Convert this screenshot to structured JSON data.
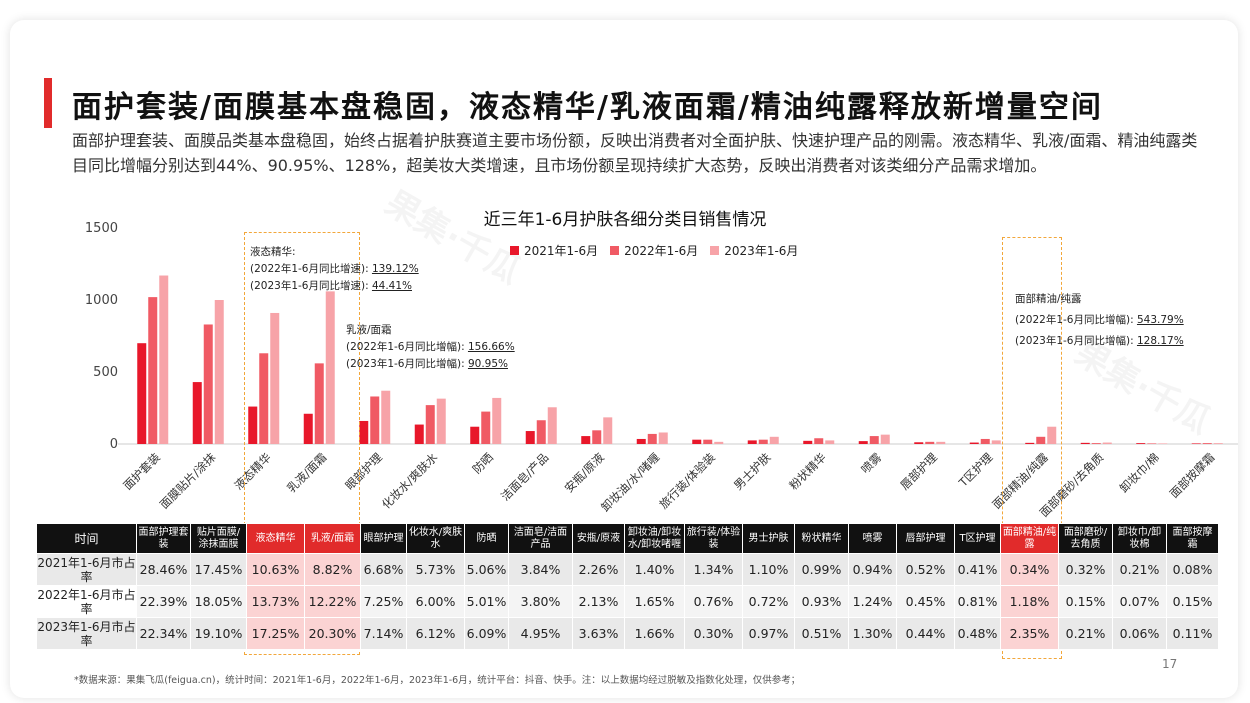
{
  "title": "面护套装/面膜基本盘稳固，液态精华/乳液面霜/精油纯露释放新增量空间",
  "description": "面部护理套装、面膜品类基本盘稳固，始终占据着护肤赛道主要市场份额，反映出消费者对全面护肤、快速护理产品的刚需。液态精华、乳液/面霜、精油纯露类目同比增幅分别达到44%、90.95%、128%，超美妆大类增速，且市场份额呈现持续扩大态势，反映出消费者对该类细分产品需求增加。",
  "watermark": "果集·千瓜",
  "colors": {
    "s2021": "#e8172a",
    "s2022": "#f05a64",
    "s2023": "#f7a3a8",
    "accent": "#e12b2b",
    "dash": "#f2a73b"
  },
  "chart_data": {
    "type": "bar",
    "title": "近三年1-6月护肤各细分类目销售情况",
    "ylim": [
      0,
      1500
    ],
    "yticks": [
      "1500",
      "1000",
      "500",
      "0"
    ],
    "categories": [
      "面护套装",
      "面膜贴片/涂抹",
      "液态精华",
      "乳液/面霜",
      "眼部护理",
      "化妆水/爽肤水",
      "防晒",
      "洁面皂/产品",
      "安瓶/原液",
      "卸妆油/水/啫喱",
      "旅行装/体验装",
      "男士护肤",
      "粉状精华",
      "喷雾",
      "唇部护理",
      "T区护理",
      "面部精油/纯露",
      "面部磨砂/去角质",
      "卸妆巾/棉",
      "面部按摩霜"
    ],
    "series": [
      {
        "name": "2021年1-6月",
        "values": [
          700,
          430,
          260,
          210,
          160,
          135,
          120,
          90,
          55,
          35,
          30,
          25,
          22,
          20,
          12,
          10,
          8,
          8,
          6,
          4
        ]
      },
      {
        "name": "2022年1-6月",
        "values": [
          1020,
          830,
          630,
          560,
          330,
          270,
          225,
          165,
          95,
          70,
          30,
          30,
          40,
          55,
          15,
          35,
          50,
          6,
          4,
          6
        ]
      },
      {
        "name": "2023年1-6月",
        "values": [
          1170,
          1000,
          910,
          1060,
          370,
          315,
          320,
          255,
          185,
          80,
          15,
          50,
          25,
          65,
          15,
          25,
          120,
          10,
          4,
          6
        ]
      }
    ],
    "annotations": [
      {
        "title": "液态精华:",
        "line1_label": "(2022年1-6月同比增速):",
        "line1_value": "139.12%",
        "line2_label": "(2023年1-6月同比增速):",
        "line2_value": "44.41%"
      },
      {
        "title": "乳液/面霜",
        "line1_label": "(2022年1-6月同比增幅):",
        "line1_value": "156.66%",
        "line2_label": "(2023年1-6月同比增幅):",
        "line2_value": "90.95%"
      },
      {
        "title": "面部精油/纯露",
        "line1_label": "(2022年1-6月同比增幅):",
        "line1_value": "543.79%",
        "line2_label": "(2023年1-6月同比增幅):",
        "line2_value": "128.17%"
      }
    ]
  },
  "table": {
    "header_first": "时间",
    "headers": [
      "面部护理套装",
      "贴片面膜/涂抹面膜",
      "液态精华",
      "乳液/面霜",
      "眼部护理",
      "化妆水/爽肤水",
      "防晒",
      "洁面皂/洁面产品",
      "安瓶/原液",
      "卸妆油/卸妆水/卸妆啫喱",
      "旅行装/体验装",
      "男士护肤",
      "粉状精华",
      "喷雾",
      "唇部护理",
      "T区护理",
      "面部精油/纯露",
      "面部磨砂/去角质",
      "卸妆巾/卸妆棉",
      "面部按摩霜"
    ],
    "rows": [
      {
        "label": "2021年1-6月市占率",
        "values": [
          "28.46%",
          "17.45%",
          "10.63%",
          "8.82%",
          "6.68%",
          "5.73%",
          "5.06%",
          "3.84%",
          "2.26%",
          "1.40%",
          "1.34%",
          "1.10%",
          "0.99%",
          "0.94%",
          "0.52%",
          "0.41%",
          "0.34%",
          "0.32%",
          "0.21%",
          "0.08%"
        ]
      },
      {
        "label": "2022年1-6月市占率",
        "values": [
          "22.39%",
          "18.05%",
          "13.73%",
          "12.22%",
          "7.25%",
          "6.00%",
          "5.01%",
          "3.80%",
          "2.13%",
          "1.65%",
          "0.76%",
          "0.72%",
          "0.93%",
          "1.24%",
          "0.45%",
          "0.81%",
          "1.18%",
          "0.15%",
          "0.07%",
          "0.15%"
        ]
      },
      {
        "label": "2023年1-6月市占率",
        "values": [
          "22.34%",
          "19.10%",
          "17.25%",
          "20.30%",
          "7.14%",
          "6.12%",
          "6.09%",
          "4.95%",
          "3.63%",
          "1.66%",
          "0.30%",
          "0.97%",
          "0.51%",
          "1.30%",
          "0.44%",
          "0.48%",
          "2.35%",
          "0.21%",
          "0.06%",
          "0.11%"
        ]
      }
    ]
  },
  "footnote": "*数据来源：果集飞瓜(feigua.cn)，统计时间：2021年1-6月，2022年1-6月，2023年1-6月，统计平台：抖音、快手。注：以上数据均经过脱敏及指数化处理，仅供参考；",
  "page_number": "17"
}
